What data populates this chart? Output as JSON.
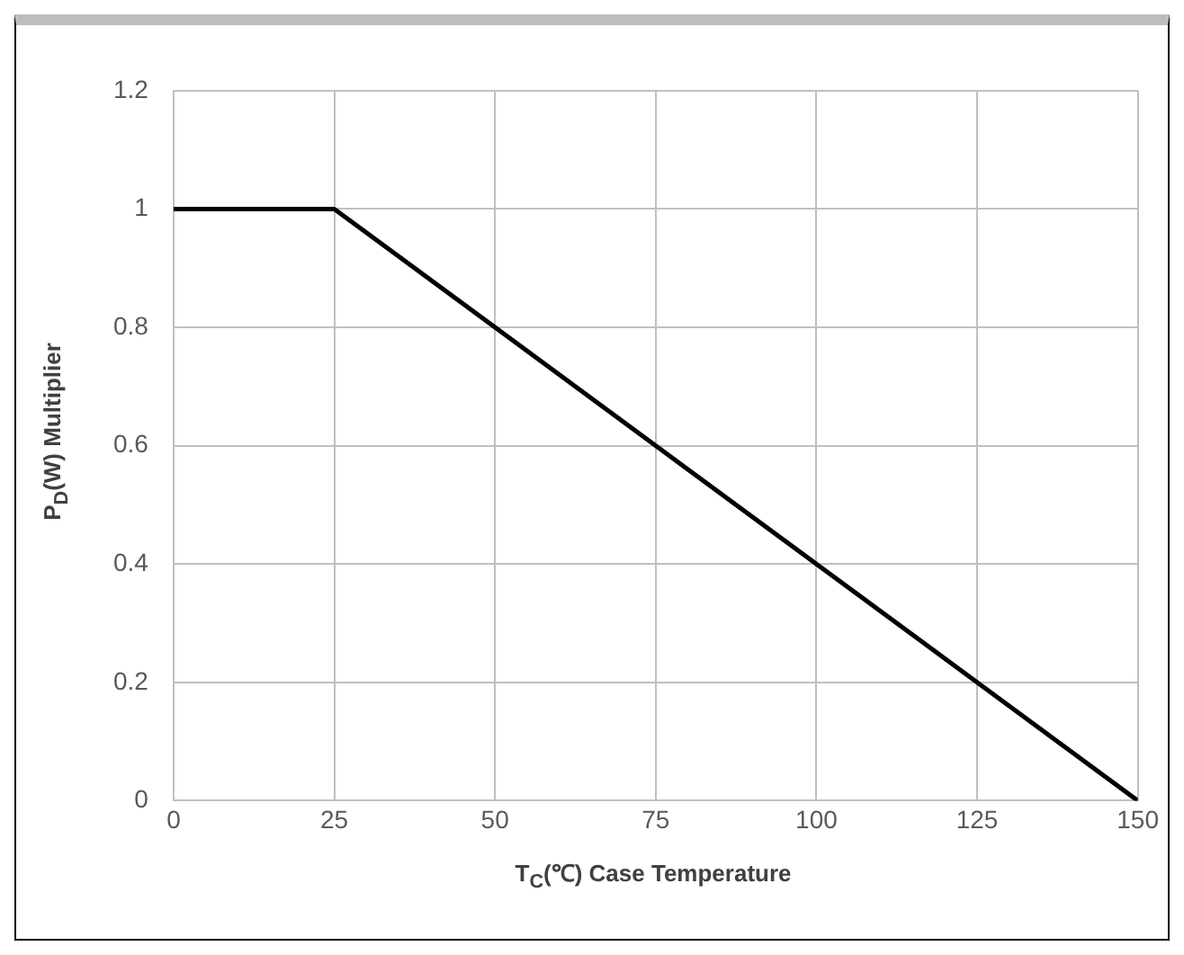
{
  "chart_data": {
    "type": "line",
    "xlabel": "T$_{C}$(℃) Case Temperature",
    "ylabel": "P$_{D}$(W) Multiplier",
    "series": [
      {
        "color": "#000000",
        "x": [
          0,
          25,
          150
        ],
        "values": [
          1,
          1,
          0
        ]
      }
    ],
    "xlim": [
      0,
      150
    ],
    "xticks": [
      0,
      25,
      50,
      75,
      100,
      125,
      150
    ],
    "ylim": [
      0,
      1.2
    ],
    "yticks": [
      0,
      0.2,
      0.4,
      0.6,
      0.8,
      1,
      1.2
    ],
    "grid": true,
    "legend": false,
    "marker": "none",
    "line_style": "solid"
  }
}
